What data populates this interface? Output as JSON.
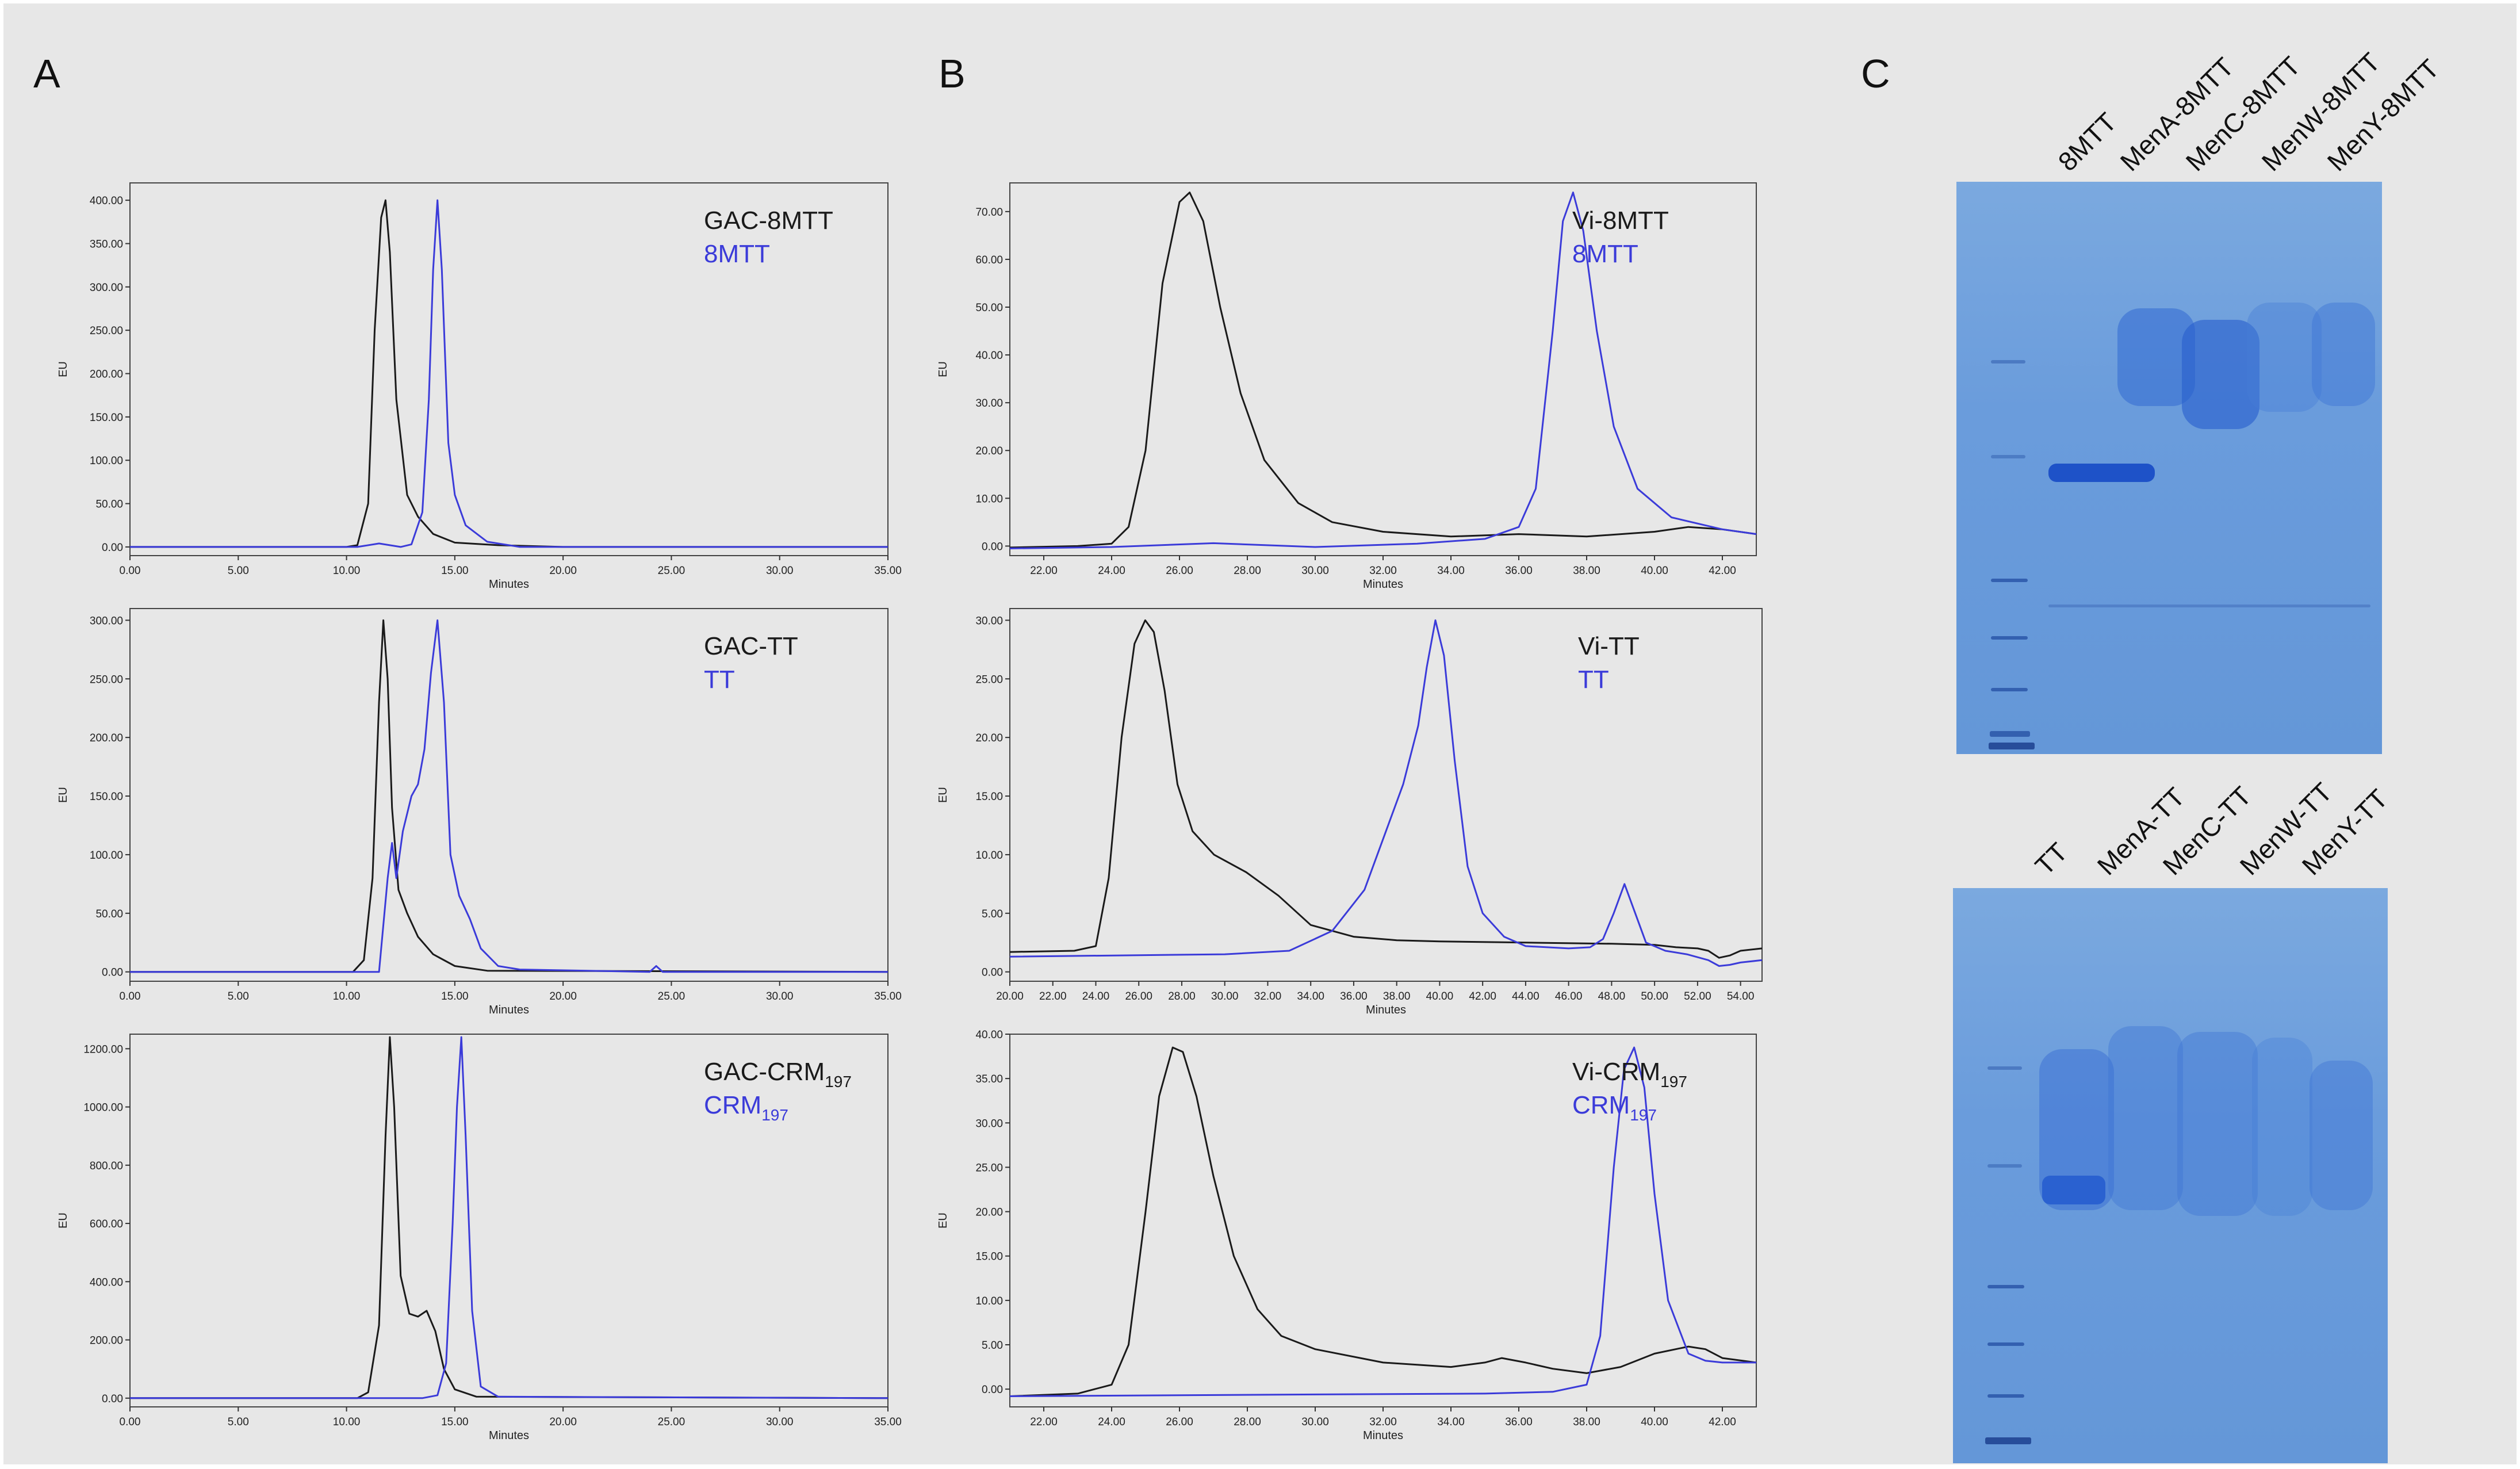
{
  "panels": {
    "a": "A",
    "b": "B",
    "c": "C"
  },
  "colors": {
    "black": "#1a1a1a",
    "blue": "#3b3bd9",
    "axis": "#333333",
    "frame": "#444444"
  },
  "chart_data": [
    {
      "id": "a1",
      "type": "line",
      "xlabel": "Minutes",
      "ylabel": "EU",
      "xlim": [
        0,
        35
      ],
      "ylim": [
        -10,
        420
      ],
      "xticks": [
        "0.00",
        "5.00",
        "10.00",
        "15.00",
        "20.00",
        "25.00",
        "30.00",
        "35.00"
      ],
      "yticks": [
        "0.00",
        "50.00",
        "100.00",
        "150.00",
        "200.00",
        "250.00",
        "300.00",
        "350.00",
        "400.00"
      ],
      "legend": [
        {
          "name": "GAC-8MTT",
          "sub": ""
        },
        {
          "name": "8MTT",
          "sub": ""
        }
      ],
      "series": [
        {
          "name": "GAC-8MTT",
          "x": [
            0,
            10,
            10.5,
            11,
            11.3,
            11.6,
            11.8,
            12,
            12.3,
            12.8,
            13.3,
            14,
            15,
            17,
            20,
            35
          ],
          "y": [
            0,
            0,
            2,
            50,
            250,
            380,
            400,
            340,
            170,
            60,
            35,
            15,
            5,
            2,
            0,
            0
          ]
        },
        {
          "name": "8MTT",
          "x": [
            0,
            10.5,
            11.5,
            12.5,
            13,
            13.5,
            13.8,
            14,
            14.2,
            14.4,
            14.7,
            15,
            15.5,
            16.5,
            18,
            35
          ],
          "y": [
            0,
            0,
            4,
            0,
            3,
            40,
            170,
            320,
            400,
            320,
            120,
            60,
            25,
            6,
            0,
            0
          ]
        }
      ]
    },
    {
      "id": "a2",
      "type": "line",
      "xlabel": "Minutes",
      "ylabel": "EU",
      "xlim": [
        0,
        35
      ],
      "ylim": [
        -8,
        310
      ],
      "xticks": [
        "0.00",
        "5.00",
        "10.00",
        "15.00",
        "20.00",
        "25.00",
        "30.00",
        "35.00"
      ],
      "yticks": [
        "0.00",
        "50.00",
        "100.00",
        "150.00",
        "200.00",
        "250.00",
        "300.00"
      ],
      "legend": [
        {
          "name": "GAC-TT",
          "sub": ""
        },
        {
          "name": "TT",
          "sub": ""
        }
      ],
      "series": [
        {
          "name": "GAC-TT",
          "x": [
            0,
            10.3,
            10.8,
            11.2,
            11.5,
            11.7,
            11.9,
            12.1,
            12.4,
            12.8,
            13.3,
            14,
            15,
            16.5,
            35
          ],
          "y": [
            0,
            0,
            10,
            80,
            230,
            300,
            250,
            140,
            70,
            50,
            30,
            15,
            5,
            1,
            0
          ]
        },
        {
          "name": "TT",
          "x": [
            0,
            11.5,
            11.9,
            12.1,
            12.3,
            12.6,
            13,
            13.3,
            13.6,
            13.9,
            14.2,
            14.5,
            14.8,
            15.2,
            15.7,
            16.2,
            17,
            18,
            24,
            24.3,
            24.6,
            35
          ],
          "y": [
            0,
            0,
            80,
            110,
            80,
            120,
            150,
            160,
            190,
            255,
            300,
            230,
            100,
            65,
            45,
            20,
            5,
            2,
            0,
            5,
            0,
            0
          ]
        }
      ]
    },
    {
      "id": "a3",
      "type": "line",
      "xlabel": "Minutes",
      "ylabel": "EU",
      "xlim": [
        0,
        35
      ],
      "ylim": [
        -30,
        1250
      ],
      "xticks": [
        "0.00",
        "5.00",
        "10.00",
        "15.00",
        "20.00",
        "25.00",
        "30.00",
        "35.00"
      ],
      "yticks": [
        "0.00",
        "200.00",
        "400.00",
        "600.00",
        "800.00",
        "1000.00",
        "1200.00"
      ],
      "legend": [
        {
          "name": "GAC-CRM",
          "sub": "197"
        },
        {
          "name": "CRM",
          "sub": "197"
        }
      ],
      "series": [
        {
          "name": "GAC-CRM197",
          "x": [
            0,
            10.5,
            11,
            11.5,
            11.8,
            12,
            12.2,
            12.5,
            12.9,
            13.3,
            13.7,
            14.1,
            14.5,
            15,
            16,
            35
          ],
          "y": [
            0,
            0,
            20,
            250,
            900,
            1240,
            1000,
            420,
            290,
            280,
            300,
            230,
            100,
            30,
            5,
            0
          ]
        },
        {
          "name": "CRM197",
          "x": [
            0,
            13.5,
            14.2,
            14.6,
            14.9,
            15.1,
            15.3,
            15.5,
            15.8,
            16.2,
            17,
            35
          ],
          "y": [
            0,
            0,
            10,
            120,
            600,
            1000,
            1240,
            900,
            300,
            40,
            5,
            0
          ]
        }
      ]
    },
    {
      "id": "b1",
      "type": "line",
      "xlabel": "Minutes",
      "ylabel": "EU",
      "xlim": [
        21,
        43
      ],
      "ylim": [
        -2,
        76
      ],
      "xticks": [
        "22.00",
        "24.00",
        "26.00",
        "28.00",
        "30.00",
        "32.00",
        "34.00",
        "36.00",
        "38.00",
        "40.00",
        "42.00"
      ],
      "xtick_values": [
        22,
        24,
        26,
        28,
        30,
        32,
        34,
        36,
        38,
        40,
        42
      ],
      "yticks": [
        "0.00",
        "10.00",
        "20.00",
        "30.00",
        "40.00",
        "50.00",
        "60.00",
        "70.00"
      ],
      "legend": [
        {
          "name": "Vi-8MTT",
          "sub": ""
        },
        {
          "name": "8MTT",
          "sub": ""
        }
      ],
      "series": [
        {
          "name": "Vi-8MTT",
          "x": [
            21,
            23,
            24,
            24.5,
            25,
            25.5,
            26,
            26.3,
            26.7,
            27.2,
            27.8,
            28.5,
            29.5,
            30.5,
            32,
            34,
            36,
            38,
            40,
            41,
            42,
            43
          ],
          "y": [
            -0.3,
            0,
            0.5,
            4,
            20,
            55,
            72,
            74,
            68,
            50,
            32,
            18,
            9,
            5,
            3,
            2,
            2.5,
            2,
            3,
            4,
            3.5,
            2.5
          ]
        },
        {
          "name": "8MTT",
          "x": [
            21,
            24,
            27,
            30,
            33,
            35,
            36,
            36.5,
            37,
            37.3,
            37.6,
            37.9,
            38.3,
            38.8,
            39.5,
            40.5,
            42,
            43
          ],
          "y": [
            -0.5,
            -0.2,
            0.6,
            -0.2,
            0.5,
            1.5,
            4,
            12,
            45,
            68,
            74,
            66,
            45,
            25,
            12,
            6,
            3.5,
            2.5
          ]
        }
      ]
    },
    {
      "id": "b2",
      "type": "line",
      "xlabel": "Minutes",
      "ylabel": "EU",
      "xlim": [
        20,
        55
      ],
      "ylim": [
        -0.8,
        31
      ],
      "xticks": [
        "20.00",
        "22.00",
        "24.00",
        "26.00",
        "28.00",
        "30.00",
        "32.00",
        "34.00",
        "36.00",
        "38.00",
        "40.00",
        "42.00",
        "44.00",
        "46.00",
        "48.00",
        "50.00",
        "52.00",
        "54.00"
      ],
      "xtick_values": [
        20,
        22,
        24,
        26,
        28,
        30,
        32,
        34,
        36,
        38,
        40,
        42,
        44,
        46,
        48,
        50,
        52,
        54
      ],
      "yticks": [
        "0.00",
        "5.00",
        "10.00",
        "15.00",
        "20.00",
        "25.00",
        "30.00"
      ],
      "legend": [
        {
          "name": "Vi-TT",
          "sub": ""
        },
        {
          "name": "TT",
          "sub": ""
        }
      ],
      "series": [
        {
          "name": "Vi-TT",
          "x": [
            20,
            23,
            24,
            24.6,
            25.2,
            25.8,
            26.3,
            26.7,
            27.2,
            27.8,
            28.5,
            29.5,
            31,
            32.5,
            34,
            36,
            38,
            40,
            44,
            48,
            50,
            51,
            52,
            52.5,
            53,
            53.5,
            54,
            55
          ],
          "y": [
            1.7,
            1.8,
            2.2,
            8,
            20,
            28,
            30,
            29,
            24,
            16,
            12,
            10,
            8.5,
            6.5,
            4,
            3,
            2.7,
            2.6,
            2.5,
            2.4,
            2.3,
            2.1,
            2,
            1.8,
            1.2,
            1.4,
            1.8,
            2
          ]
        },
        {
          "name": "TT",
          "x": [
            20,
            30,
            33,
            35,
            36.5,
            37.5,
            38.3,
            39,
            39.4,
            39.8,
            40.2,
            40.7,
            41.3,
            42,
            43,
            44,
            46,
            47,
            47.6,
            48.1,
            48.6,
            49.1,
            49.6,
            50.5,
            51.5,
            52.5,
            53,
            53.5,
            54,
            55
          ],
          "y": [
            1.3,
            1.5,
            1.8,
            3.5,
            7,
            12,
            16,
            21,
            26,
            30,
            27,
            18,
            9,
            5,
            3,
            2.2,
            2,
            2.1,
            2.8,
            5,
            7.5,
            5,
            2.5,
            1.8,
            1.5,
            1,
            0.5,
            0.6,
            0.8,
            1
          ]
        }
      ]
    },
    {
      "id": "b3",
      "type": "line",
      "xlabel": "Minutes",
      "ylabel": "EU",
      "xlim": [
        21,
        43
      ],
      "ylim": [
        -2,
        40
      ],
      "xticks": [
        "22.00",
        "24.00",
        "26.00",
        "28.00",
        "30.00",
        "32.00",
        "34.00",
        "36.00",
        "38.00",
        "40.00",
        "42.00"
      ],
      "xtick_values": [
        22,
        24,
        26,
        28,
        30,
        32,
        34,
        36,
        38,
        40,
        42
      ],
      "yticks": [
        "0.00",
        "5.00",
        "10.00",
        "15.00",
        "20.00",
        "25.00",
        "30.00",
        "35.00",
        "40.00"
      ],
      "legend": [
        {
          "name": "Vi-CRM",
          "sub": "197"
        },
        {
          "name": "CRM",
          "sub": "197"
        }
      ],
      "series": [
        {
          "name": "Vi-CRM197",
          "x": [
            21,
            23,
            24,
            24.5,
            25,
            25.4,
            25.8,
            26.1,
            26.5,
            27,
            27.6,
            28.3,
            29,
            30,
            32,
            34,
            35,
            35.5,
            36.2,
            37,
            38,
            39,
            40,
            41,
            41.5,
            42,
            43
          ],
          "y": [
            -0.8,
            -0.5,
            0.5,
            5,
            20,
            33,
            38.5,
            38,
            33,
            24,
            15,
            9,
            6,
            4.5,
            3,
            2.5,
            3,
            3.5,
            3,
            2.3,
            1.8,
            2.5,
            4,
            4.8,
            4.5,
            3.5,
            3
          ]
        },
        {
          "name": "CRM197",
          "x": [
            21,
            30,
            35,
            37,
            38,
            38.4,
            38.8,
            39.1,
            39.4,
            39.7,
            40,
            40.4,
            41,
            41.5,
            42,
            43
          ],
          "y": [
            -0.8,
            -0.6,
            -0.5,
            -0.3,
            0.5,
            6,
            25,
            36,
            38.5,
            34,
            22,
            10,
            4,
            3.2,
            3,
            3
          ]
        }
      ]
    }
  ],
  "gels": [
    {
      "lanes": [
        "8MTT",
        "MenA-8MTT",
        "MenC-8MTT",
        "MenW-8MTT",
        "MenY-8MTT"
      ]
    },
    {
      "lanes": [
        "TT",
        "MenA-TT",
        "MenC-TT",
        "MenW-TT",
        "MenY-TT"
      ]
    }
  ]
}
